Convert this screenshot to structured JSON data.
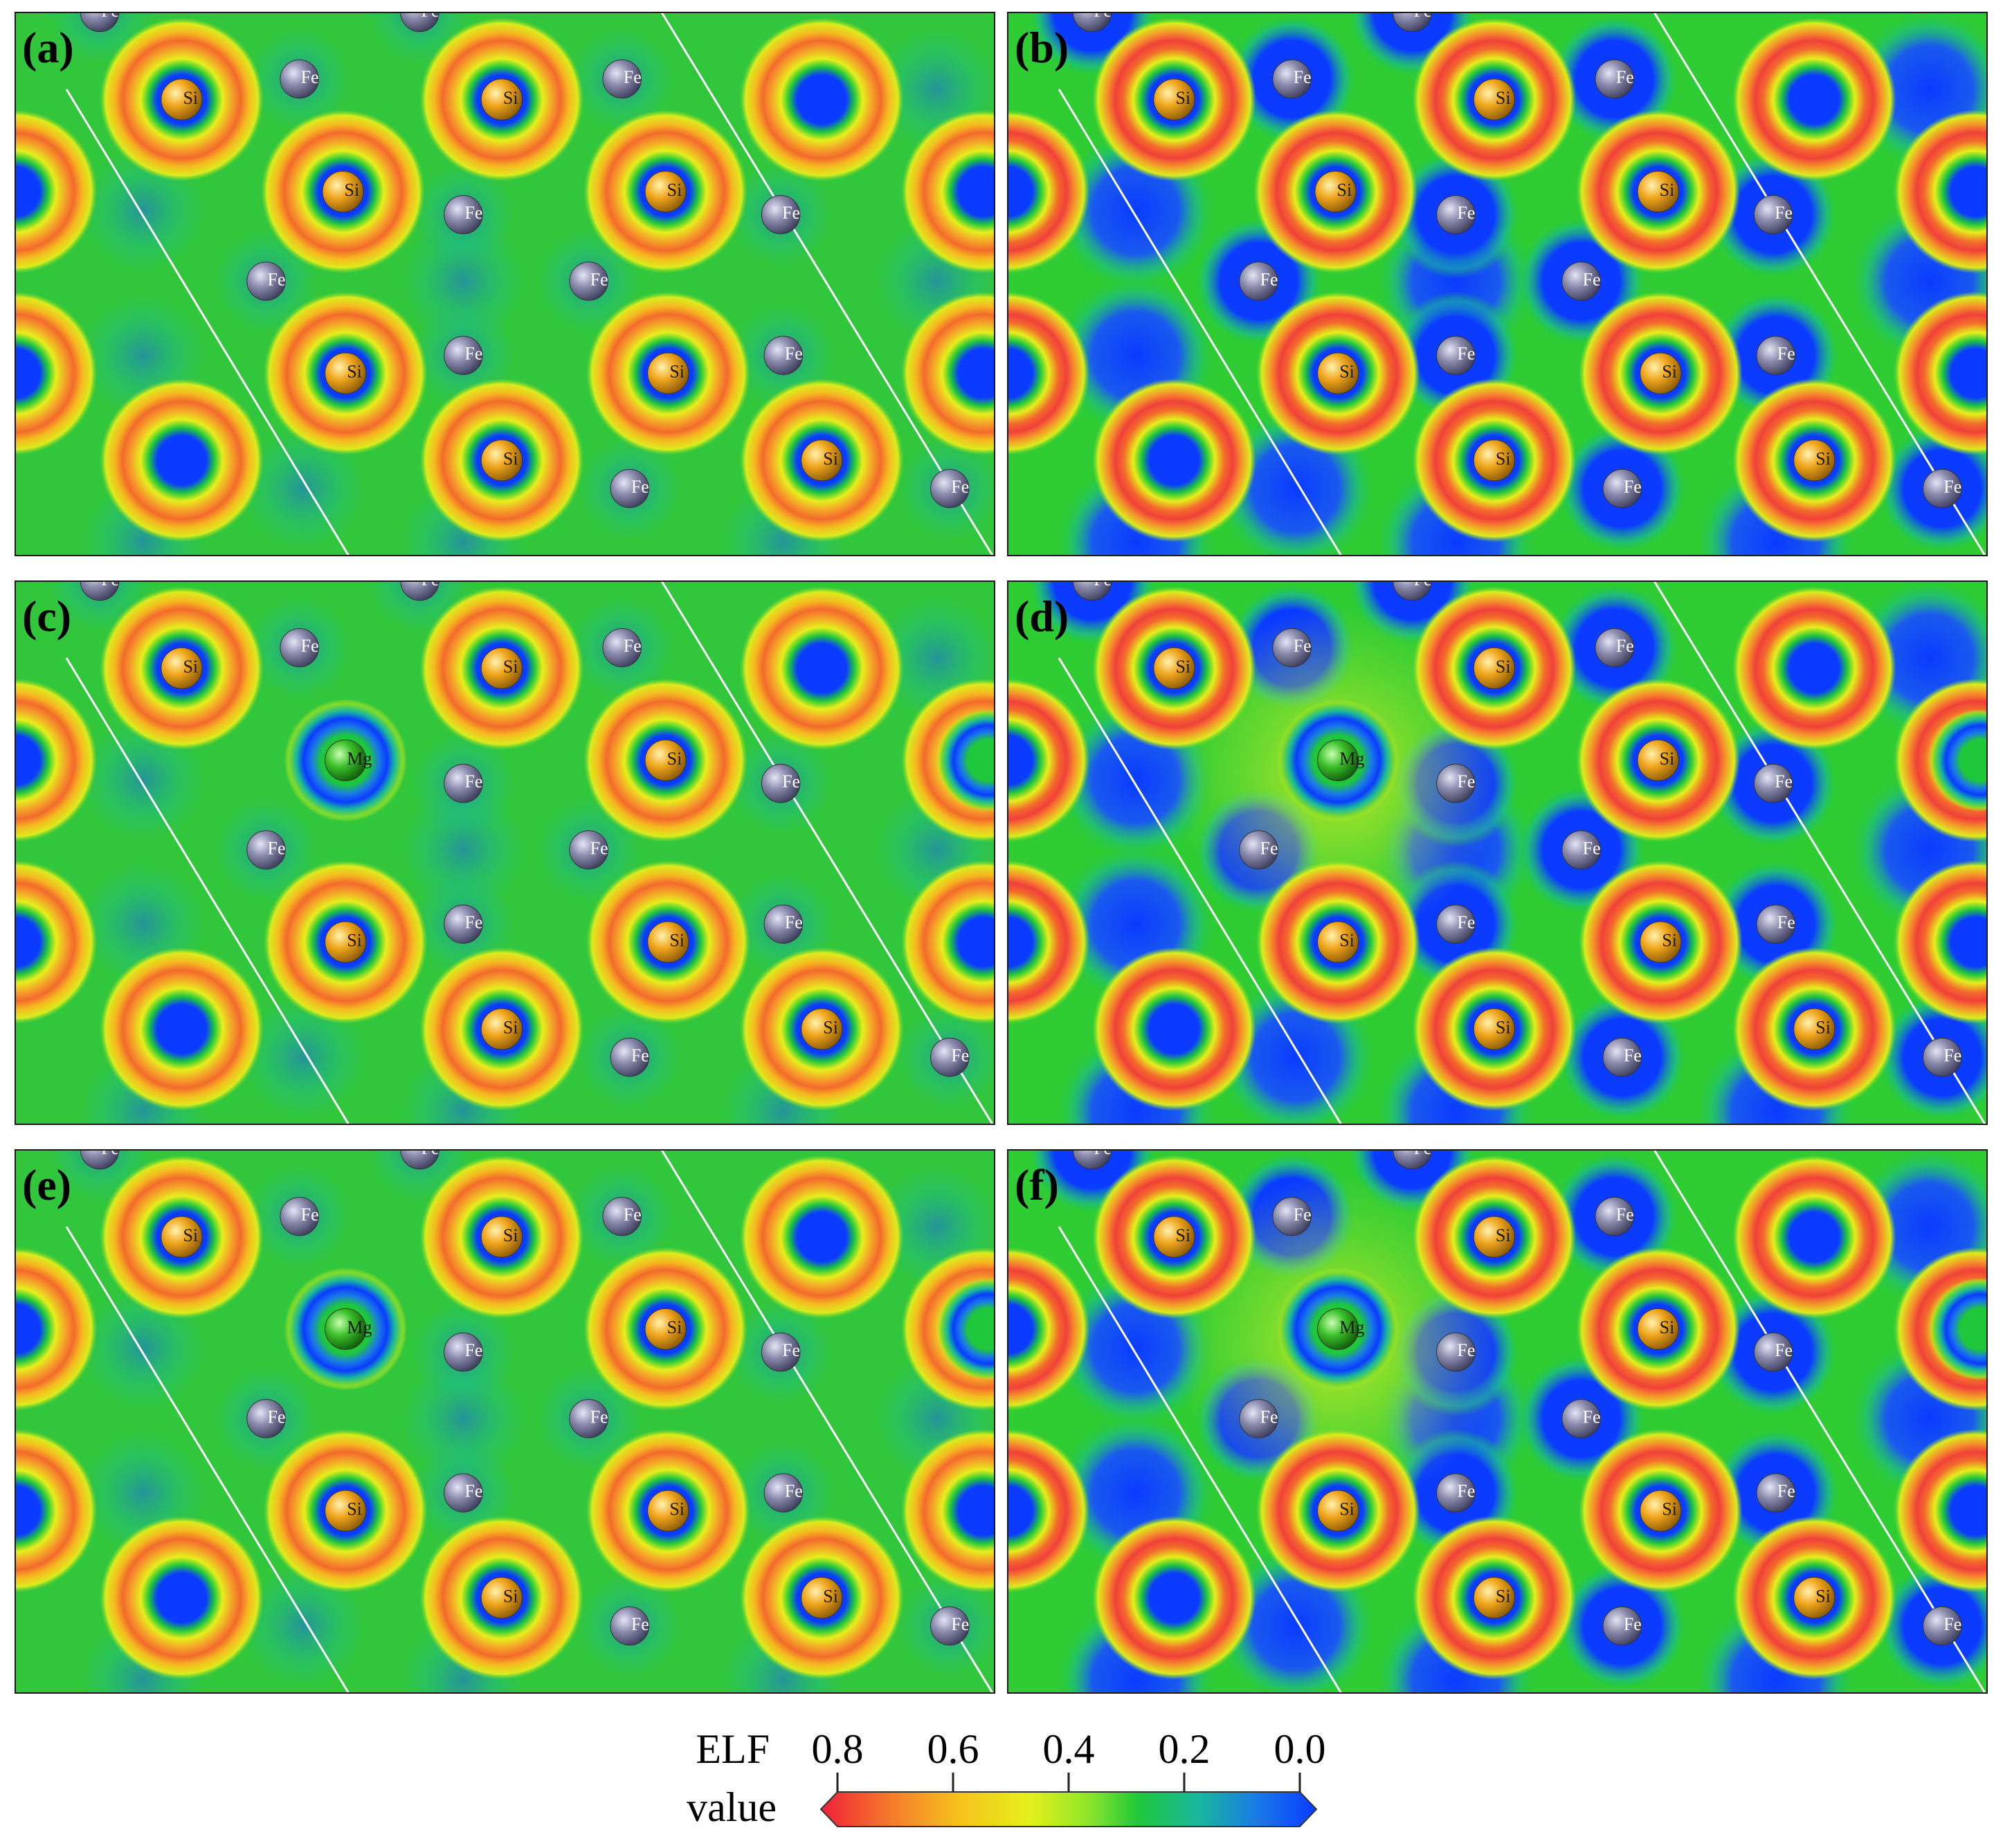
{
  "figure": {
    "panels": [
      {
        "label": "(a)",
        "mg": false,
        "variant": "a"
      },
      {
        "label": "(b)",
        "mg": false,
        "variant": "b"
      },
      {
        "label": "(c)",
        "mg": true,
        "variant": "a"
      },
      {
        "label": "(d)",
        "mg": true,
        "variant": "b"
      },
      {
        "label": "(e)",
        "mg": true,
        "variant": "a"
      },
      {
        "label": "(f)",
        "mg": true,
        "variant": "b"
      }
    ],
    "atom_labels": {
      "si": "Si",
      "fe": "Fe",
      "mg": "Mg"
    },
    "atom_colors": {
      "si": "#f0a51c",
      "fe": "#8a8aad",
      "mg": "#3cbf2a"
    }
  },
  "colorbar": {
    "title_line1": "ELF",
    "title_line2": "value",
    "ticks": [
      "0.8",
      "0.6",
      "0.4",
      "0.2",
      "0.0"
    ],
    "tick_values": [
      0.8,
      0.6,
      0.4,
      0.2,
      0.0
    ],
    "colors": [
      "#f0203a",
      "#f57a2a",
      "#f6c21e",
      "#e6ef1c",
      "#8ee62a",
      "#1fc83a",
      "#18b89c",
      "#1a7ae6",
      "#0a3bff"
    ]
  }
}
